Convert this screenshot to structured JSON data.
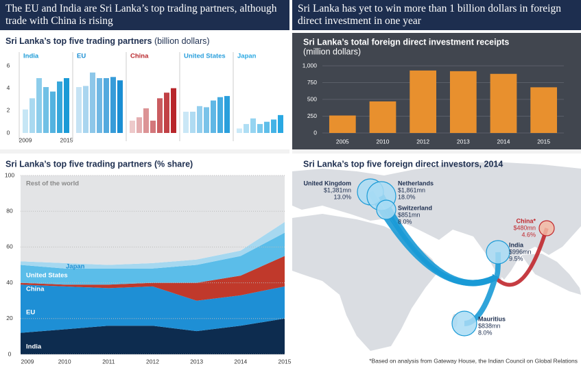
{
  "panels": [
    {
      "title": "The EU and India are Sri Lanka’s top trading partners, although trade with China is rising"
    },
    {
      "title": "Sri Lanka has yet to win more than 1 billion dollars in foreign direct investment in one year"
    }
  ],
  "chart_data": [
    {
      "type": "bar",
      "small_multiples": true,
      "title": "Sri Lanka’s top five trading partners",
      "unit": "(billion dollars)",
      "categories": [
        "2009",
        null,
        null,
        null,
        null,
        null,
        "2015"
      ],
      "series": [
        {
          "name": "India",
          "color": "#1a9ad6",
          "values": [
            2.1,
            3.1,
            4.9,
            4.1,
            3.7,
            4.6,
            4.9
          ]
        },
        {
          "name": "EU",
          "color": "#1a8ed3",
          "values": [
            4.1,
            4.2,
            5.4,
            4.9,
            4.9,
            5.0,
            4.7
          ]
        },
        {
          "name": "China",
          "color": "#b8262b",
          "values": [
            1.1,
            1.4,
            2.2,
            1.1,
            3.1,
            3.6,
            4.0
          ]
        },
        {
          "name": "United States",
          "color": "#2a9fdc",
          "values": [
            1.9,
            1.9,
            2.4,
            2.3,
            2.9,
            3.2,
            3.3
          ]
        },
        {
          "name": "Japan",
          "color": "#2aa8e2",
          "values": [
            0.4,
            0.8,
            1.3,
            0.8,
            1.0,
            1.2,
            1.6
          ]
        }
      ],
      "ylim": [
        0,
        6
      ],
      "yticks": [
        0,
        2,
        4,
        6
      ]
    },
    {
      "type": "bar",
      "title": "Sri Lanka’s total foreign direct investment receipts",
      "subtitle": "(million dollars)",
      "categories": [
        "2005",
        "2010",
        "2012",
        "2013",
        "2014",
        "2015"
      ],
      "values": [
        260,
        470,
        930,
        920,
        880,
        680
      ],
      "color": "#e8902e",
      "ylim": [
        0,
        1000
      ],
      "yticks": [
        0,
        250,
        500,
        750,
        {
          "value": 1000,
          "label": "1,000"
        }
      ],
      "grid": true
    },
    {
      "type": "area",
      "stacked": true,
      "title": "Sri Lanka’s top five trading partners (% share)",
      "x": [
        2009,
        2010,
        2011,
        2012,
        2013,
        2014,
        2015
      ],
      "series": [
        {
          "name": "India",
          "color": "#0d2c4f",
          "values": [
            12,
            14,
            16,
            16,
            13,
            16,
            20
          ]
        },
        {
          "name": "EU",
          "color": "#1e8fd5",
          "values": [
            27,
            24,
            21,
            22,
            17,
            17,
            18
          ]
        },
        {
          "name": "China",
          "color": "#c0392b",
          "values": [
            1,
            1,
            2,
            2,
            10,
            11,
            17
          ]
        },
        {
          "name": "United States",
          "color": "#5bbde9",
          "values": [
            10,
            9,
            9,
            8,
            10,
            11,
            13
          ]
        },
        {
          "name": "Japan",
          "color": "#a6d8f0",
          "values": [
            2,
            3,
            2,
            3,
            3,
            3,
            6
          ]
        },
        {
          "name": "Rest of the world",
          "color": "#e3e4e6",
          "values": [
            48,
            49,
            50,
            49,
            47,
            42,
            26
          ]
        }
      ],
      "xlim": [
        2009,
        2015
      ],
      "xticks": [
        2009,
        2010,
        2011,
        2012,
        2013,
        2014,
        2015
      ],
      "ylim": [
        0,
        100
      ],
      "yticks": [
        0,
        20,
        40,
        60,
        80,
        100
      ],
      "grid": true
    }
  ],
  "map": {
    "title": "Sri Lanka’s top five foreign direct investors, 2014",
    "investors": [
      {
        "name": "United Kingdom",
        "amount": "$1,381mn",
        "share": "13.0%"
      },
      {
        "name": "Netherlands",
        "amount": "$1,861mn",
        "share": "18.0%"
      },
      {
        "name": "Switzerland",
        "amount": "$851mn",
        "share": "8.0%"
      },
      {
        "name": "China*",
        "amount": "$480mn",
        "share": "4.6%"
      },
      {
        "name": "India",
        "amount": "$996mn",
        "share": "9.5%"
      },
      {
        "name": "Mauritius",
        "amount": "$838mn",
        "share": "8.0%"
      }
    ],
    "note": "*Based on analysis from Gateway House, the Indian Council on Global Relations"
  }
}
